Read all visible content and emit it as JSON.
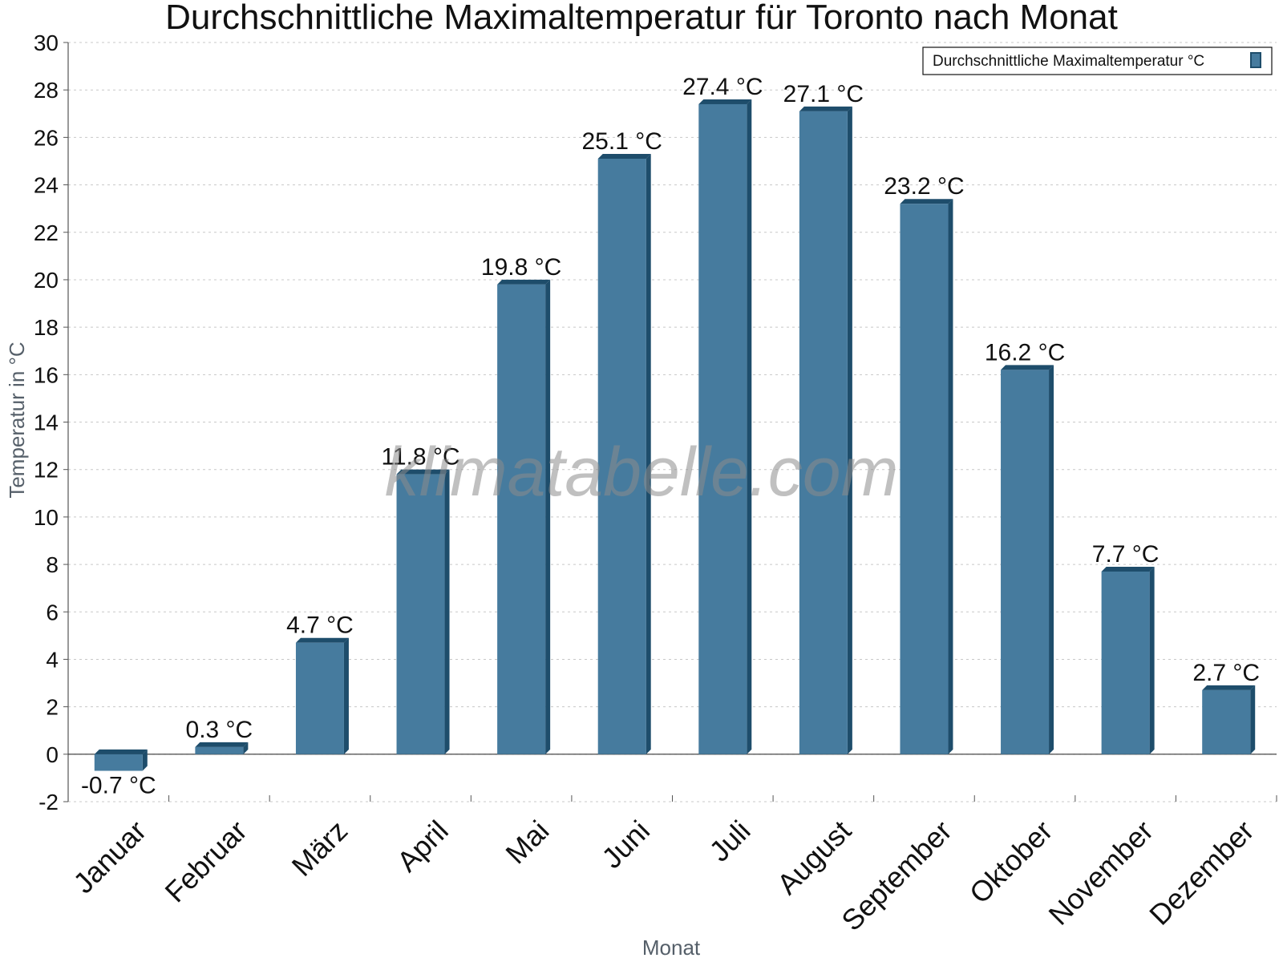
{
  "chart_data": {
    "type": "bar",
    "title": "Durchschnittliche Maximaltemperatur für Toronto nach Monat",
    "xlabel": "Monat",
    "ylabel": "Temperatur in °C",
    "categories": [
      "Januar",
      "Februar",
      "März",
      "April",
      "Mai",
      "Juni",
      "Juli",
      "August",
      "September",
      "Oktober",
      "November",
      "Dezember"
    ],
    "series": [
      {
        "name": "Durchschnittliche Maximaltemperatur °C",
        "values": [
          -0.7,
          0.3,
          4.7,
          11.8,
          19.8,
          25.1,
          27.4,
          27.1,
          23.2,
          16.2,
          7.7,
          2.7
        ],
        "color": "#467b9e"
      }
    ],
    "data_labels": [
      "-0.7 °C",
      "0.3 °C",
      "4.7 °C",
      "11.8 °C",
      "19.8 °C",
      "25.1 °C",
      "27.4 °C",
      "27.1 °C",
      "23.2 °C",
      "16.2 °C",
      "7.7 °C",
      "2.7 °C"
    ],
    "ylim": [
      -2,
      30
    ],
    "yticks": [
      -2,
      0,
      2,
      4,
      6,
      8,
      10,
      12,
      14,
      16,
      18,
      20,
      22,
      24,
      26,
      28,
      30
    ],
    "grid": true,
    "legend": "top-right",
    "watermark": "klimatabelle.com"
  },
  "colors": {
    "bar": "#467b9e",
    "bar_dark": "#1e4d6b",
    "grid": "#c8c8c8",
    "axis": "#555555",
    "text": "#111111",
    "axis_label": "#555f69"
  }
}
